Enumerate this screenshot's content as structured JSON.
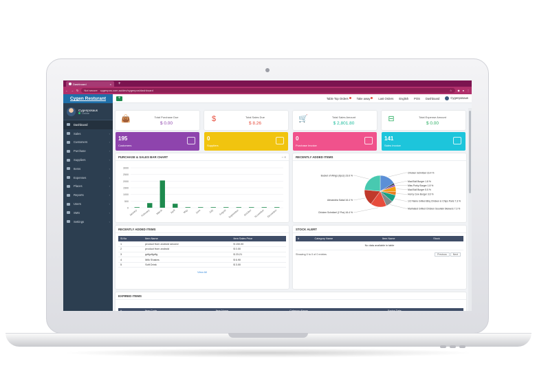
{
  "browser": {
    "tab_title": "Dashboard",
    "secure_label": "Not secure",
    "url": "cygenpos.com.au/dev/cygenpos/dashboard"
  },
  "sidebar": {
    "brand": "Cygen Resturant",
    "user_name": "Cygenposaus",
    "status": "Online",
    "items": [
      {
        "label": "Dashboard",
        "icon": "dashboard-icon",
        "active": true
      },
      {
        "label": "Sales",
        "icon": "cart-icon"
      },
      {
        "label": "Customers",
        "icon": "users-icon"
      },
      {
        "label": "Purchase",
        "icon": "bag-icon"
      },
      {
        "label": "Suppliers",
        "icon": "truck-icon"
      },
      {
        "label": "Items",
        "icon": "box-icon"
      },
      {
        "label": "Expenses",
        "icon": "money-icon"
      },
      {
        "label": "Places",
        "icon": "map-icon"
      },
      {
        "label": "Reports",
        "icon": "chart-icon"
      },
      {
        "label": "Users",
        "icon": "user-icon"
      },
      {
        "label": "SMS",
        "icon": "envelope-icon"
      },
      {
        "label": "Settings",
        "icon": "gear-icon"
      }
    ]
  },
  "topbar": {
    "links": [
      "Table Top Orders",
      "Take away",
      "Last Orders",
      "English",
      "POS",
      "Dashboard"
    ],
    "user": "Cygenposaus"
  },
  "stats": [
    {
      "label": "Total Purchase Due",
      "value": "$ 0.00",
      "color": "#8e44ad",
      "icon": "bag-icon"
    },
    {
      "label": "Total Sales Due",
      "value": "$ 8.26",
      "color": "#e74c3c",
      "icon": "dollar-icon"
    },
    {
      "label": "Total Sales Amount",
      "value": "$ 2,801.80",
      "color": "#1abc9c",
      "icon": "cart-icon"
    },
    {
      "label": "Total Expense Amount",
      "value": "$ 0.00",
      "color": "#27ae60",
      "icon": "minus-square-icon"
    }
  ],
  "cards": [
    {
      "num": "195",
      "label": "Customers",
      "color": "#8e44ad",
      "icon": "users-icon"
    },
    {
      "num": "0",
      "label": "Suppliers",
      "color": "#f1c40f",
      "icon": "users-icon"
    },
    {
      "num": "0",
      "label": "Purchase Invoice",
      "color": "#f0528c",
      "icon": "file-icon"
    },
    {
      "num": "141",
      "label": "Sales Invoice",
      "color": "#1dc5db",
      "icon": "file-icon"
    }
  ],
  "bar_panel": {
    "title": "PURCHASE & SALES BAR CHART",
    "controls": "–  ×"
  },
  "pie_panel": {
    "title": "RECENTLY ADDED ITEMS"
  },
  "chart_data": [
    {
      "type": "bar",
      "title": "PURCHASE & SALES BAR CHART",
      "categories": [
        "January",
        "February",
        "March",
        "April",
        "May",
        "June",
        "July",
        "August",
        "September",
        "October",
        "November",
        "December"
      ],
      "values": [
        0,
        350,
        2050,
        300,
        0,
        0,
        0,
        0,
        0,
        0,
        0,
        0
      ],
      "yticks": [
        0,
        500,
        1000,
        1500,
        2000,
        2500,
        3000
      ],
      "ylim": [
        0,
        3000
      ],
      "grid": true,
      "color": "#1e8b4e"
    },
    {
      "type": "pie",
      "title": "RECENTLY ADDED ITEMS",
      "slices": [
        {
          "label": "Chicken Schnitzel 16.4 %",
          "value": 16.4,
          "color": "#5b8fd6"
        },
        {
          "label": "Mad Bull Burger 1.8 %",
          "value": 1.8,
          "color": "#2d3e50"
        },
        {
          "label": "Miss Porky Burger 1.8 %",
          "value": 1.8,
          "color": "#8e44ad"
        },
        {
          "label": "Mad Bull Burger 5.5 %",
          "value": 5.5,
          "color": "#f39c12"
        },
        {
          "label": "Horny Cow Burger 3.6 %",
          "value": 3.6,
          "color": "#e67e22"
        },
        {
          "label": "1/2 Flame Grilled Bbq Chicken & Chips Paris 7.3 %",
          "value": 7.3,
          "color": "#16a085"
        },
        {
          "label": "Marinated Grilled Chicken Souvlaki Skewers 7.3 %",
          "value": 7.3,
          "color": "#7f8c8d"
        },
        {
          "label": "Chicken Schnitzel (2 Pcs) 16.4 %",
          "value": 16.4,
          "color": "#e74c3c"
        },
        {
          "label": "Alexandria Salad 16.4 %",
          "value": 16.4,
          "color": "#c0392b"
        },
        {
          "label": "Bucket of Wings (6pcs) 23.6 %",
          "value": 23.6,
          "color": "#48c9b0"
        }
      ]
    }
  ],
  "recent_items": {
    "title": "RECENTLY ADDED ITEMS",
    "columns": [
      "Sl.No",
      "Item Name",
      "Item Sales Price"
    ],
    "rows": [
      [
        "1",
        "product from android second",
        "$ 150.00"
      ],
      [
        "2",
        "product from android",
        "$ 0.00"
      ],
      [
        "3",
        "gdfgdfgdfg",
        "$ 23.21"
      ],
      [
        "4",
        "Milk Shakes",
        "$ 6.90"
      ],
      [
        "5",
        "Soft Drink",
        "$ 3.00"
      ]
    ],
    "view_all": "View All"
  },
  "stock_alert": {
    "title": "STOCK ALERT",
    "columns": [
      "#",
      "Category Name",
      "Item Name",
      "Stock"
    ],
    "empty": "No data available in table",
    "info": "Showing 0 to 0 of 0 entries",
    "prev": "Previous",
    "next": "Next"
  },
  "expired": {
    "title": "EXPIRED ITEMS",
    "columns": [
      "#",
      "Item Code",
      "Item Name",
      "Category Name",
      "Expire Date"
    ]
  }
}
